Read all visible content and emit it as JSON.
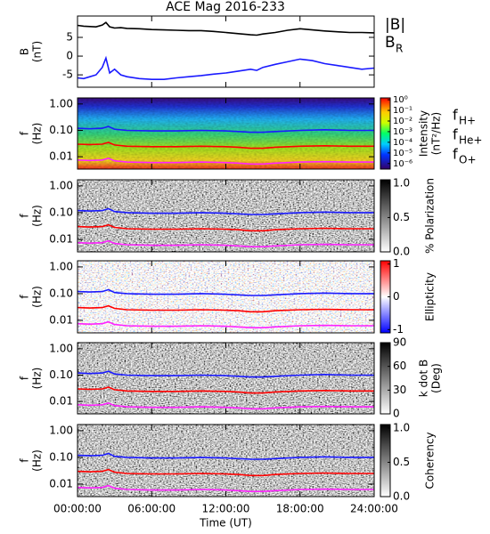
{
  "chart_data": [
    {
      "type": "line",
      "title": "ACE Mag 2016-233",
      "ylabel": [
        "B",
        "(nT)"
      ],
      "ylim": [
        -8.3,
        10.7
      ],
      "yticks": [
        -5,
        0,
        5
      ],
      "xlim": [
        0,
        24
      ],
      "x": [
        0,
        0.5,
        1,
        1.5,
        2,
        2.3,
        2.6,
        3,
        3.5,
        4,
        5,
        6,
        7,
        8,
        9,
        10,
        11,
        12,
        13,
        14,
        14.5,
        15,
        16,
        17,
        18,
        19,
        20,
        21,
        22,
        23,
        24
      ],
      "series": [
        {
          "name": "|B|",
          "color": "#000000",
          "values": [
            8.2,
            8.0,
            7.9,
            7.8,
            8.3,
            9.0,
            7.8,
            7.5,
            7.6,
            7.4,
            7.3,
            7.1,
            7.0,
            6.9,
            6.8,
            6.8,
            6.6,
            6.3,
            6.0,
            5.7,
            5.6,
            5.9,
            6.3,
            6.9,
            7.3,
            7.0,
            6.7,
            6.5,
            6.3,
            6.3,
            6.2
          ]
        },
        {
          "name": "B",
          "subscript": "R",
          "color": "#1a1aff",
          "values": [
            -5.8,
            -6.0,
            -5.5,
            -5.0,
            -3.0,
            -0.5,
            -4.5,
            -3.5,
            -5.0,
            -5.5,
            -6.0,
            -6.2,
            -6.2,
            -5.8,
            -5.5,
            -5.2,
            -4.8,
            -4.5,
            -4.0,
            -3.5,
            -3.8,
            -3.0,
            -2.2,
            -1.5,
            -0.8,
            -1.2,
            -2.0,
            -2.5,
            -3.0,
            -3.5,
            -3.2
          ]
        }
      ]
    },
    {
      "type": "spectrogram",
      "colormap": "rainbow",
      "ylabel": [
        "f",
        "(Hz)"
      ],
      "log_y": true,
      "ylim": [
        0.0034,
        1.7
      ],
      "xlim": [
        0,
        24
      ],
      "yticks": [
        {
          "value": 1,
          "label": "1.00"
        },
        {
          "value": 0.1,
          "label": "0.10"
        },
        {
          "value": 0.01,
          "label": "0.01"
        }
      ],
      "colorbar_label": [
        "Intensity",
        "(nT²/Hz)"
      ],
      "colorbar_log": true,
      "clim": [
        3e-07,
        1.5
      ],
      "cticks": [
        {
          "value": 1,
          "label": "10⁰"
        },
        {
          "value": 0.1,
          "label": "10⁻¹"
        },
        {
          "value": 0.01,
          "label": "10⁻²"
        },
        {
          "value": 0.001,
          "label": "10⁻³"
        },
        {
          "value": 0.0001,
          "label": "10⁻⁴"
        },
        {
          "value": 1e-05,
          "label": "10⁻⁵"
        },
        {
          "value": 1e-06,
          "label": "10⁻⁶"
        }
      ],
      "x": [
        0,
        1,
        2,
        2.5,
        3,
        4,
        6,
        8,
        10,
        12,
        13,
        14,
        15,
        16,
        18,
        20,
        22,
        24
      ],
      "series": [
        {
          "name": "f",
          "subscript": "H+",
          "color": "#1a1aff",
          "values": [
            0.12,
            0.115,
            0.12,
            0.14,
            0.11,
            0.1,
            0.095,
            0.095,
            0.1,
            0.095,
            0.09,
            0.085,
            0.085,
            0.09,
            0.1,
            0.105,
            0.1,
            0.1
          ]
        },
        {
          "name": "f",
          "subscript": "He+",
          "color": "#ff0000",
          "values": [
            0.03,
            0.029,
            0.03,
            0.035,
            0.028,
            0.025,
            0.024,
            0.024,
            0.025,
            0.024,
            0.023,
            0.021,
            0.021,
            0.023,
            0.025,
            0.026,
            0.025,
            0.025
          ]
        },
        {
          "name": "f",
          "subscript": "O+",
          "color": "#ff22ff",
          "values": [
            0.0075,
            0.0072,
            0.0075,
            0.0088,
            0.007,
            0.0063,
            0.006,
            0.006,
            0.0063,
            0.006,
            0.0057,
            0.0053,
            0.0053,
            0.0057,
            0.0063,
            0.0065,
            0.0063,
            0.0063
          ]
        }
      ]
    },
    {
      "type": "spectrogram",
      "colormap": "gray",
      "ylabel": [
        "f",
        "(Hz)"
      ],
      "log_y": true,
      "ylim": [
        0.0034,
        1.7
      ],
      "xlim": [
        0,
        24
      ],
      "yticks": [
        {
          "value": 1,
          "label": "1.00"
        },
        {
          "value": 0.1,
          "label": "0.10"
        },
        {
          "value": 0.01,
          "label": "0.01"
        }
      ],
      "colorbar_label": [
        "% Polarization"
      ],
      "clim": [
        0,
        1.05
      ],
      "cticks": [
        {
          "value": 0,
          "label": "0.0"
        },
        {
          "value": 0.5,
          "label": "0.5"
        },
        {
          "value": 1,
          "label": "1.0"
        }
      ]
    },
    {
      "type": "spectrogram",
      "colormap": "bwr",
      "ylabel": [
        "f",
        "(Hz)"
      ],
      "log_y": true,
      "ylim": [
        0.0034,
        1.7
      ],
      "xlim": [
        0,
        24
      ],
      "yticks": [
        {
          "value": 1,
          "label": "1.00"
        },
        {
          "value": 0.1,
          "label": "0.10"
        },
        {
          "value": 0.01,
          "label": "0.01"
        }
      ],
      "colorbar_label": [
        "Ellipticity"
      ],
      "clim": [
        -1.1,
        1.1
      ],
      "cticks": [
        -1,
        0,
        1
      ]
    },
    {
      "type": "spectrogram",
      "colormap": "gray",
      "ylabel": [
        "f",
        "(Hz)"
      ],
      "log_y": true,
      "ylim": [
        0.0034,
        1.7
      ],
      "xlim": [
        0,
        24
      ],
      "yticks": [
        {
          "value": 1,
          "label": "1.00"
        },
        {
          "value": 0.1,
          "label": "0.10"
        },
        {
          "value": 0.01,
          "label": "0.01"
        }
      ],
      "colorbar_label": [
        "k dot B",
        "(Deg)"
      ],
      "clim": [
        0,
        90
      ],
      "cticks": [
        0,
        30,
        60,
        90
      ]
    },
    {
      "type": "spectrogram",
      "colormap": "gray",
      "ylabel": [
        "f",
        "(Hz)"
      ],
      "log_y": true,
      "ylim": [
        0.0034,
        1.7
      ],
      "xlim": [
        0,
        24
      ],
      "yticks": [
        {
          "value": 1,
          "label": "1.00"
        },
        {
          "value": 0.1,
          "label": "0.10"
        },
        {
          "value": 0.01,
          "label": "0.01"
        }
      ],
      "colorbar_label": [
        "Coherency"
      ],
      "clim": [
        0,
        1.05
      ],
      "cticks": [
        {
          "value": 0,
          "label": "0.0"
        },
        {
          "value": 0.5,
          "label": "0.5"
        },
        {
          "value": 1,
          "label": "1.0"
        }
      ],
      "xlabel": "Time (UT)",
      "xticks": [
        {
          "value": 0,
          "label": "00:00:00"
        },
        {
          "value": 6,
          "label": "06:00:00"
        },
        {
          "value": 12,
          "label": "12:00:00"
        },
        {
          "value": 18,
          "label": "18:00:00"
        },
        {
          "value": 24,
          "label": "24:00:00"
        }
      ]
    }
  ]
}
